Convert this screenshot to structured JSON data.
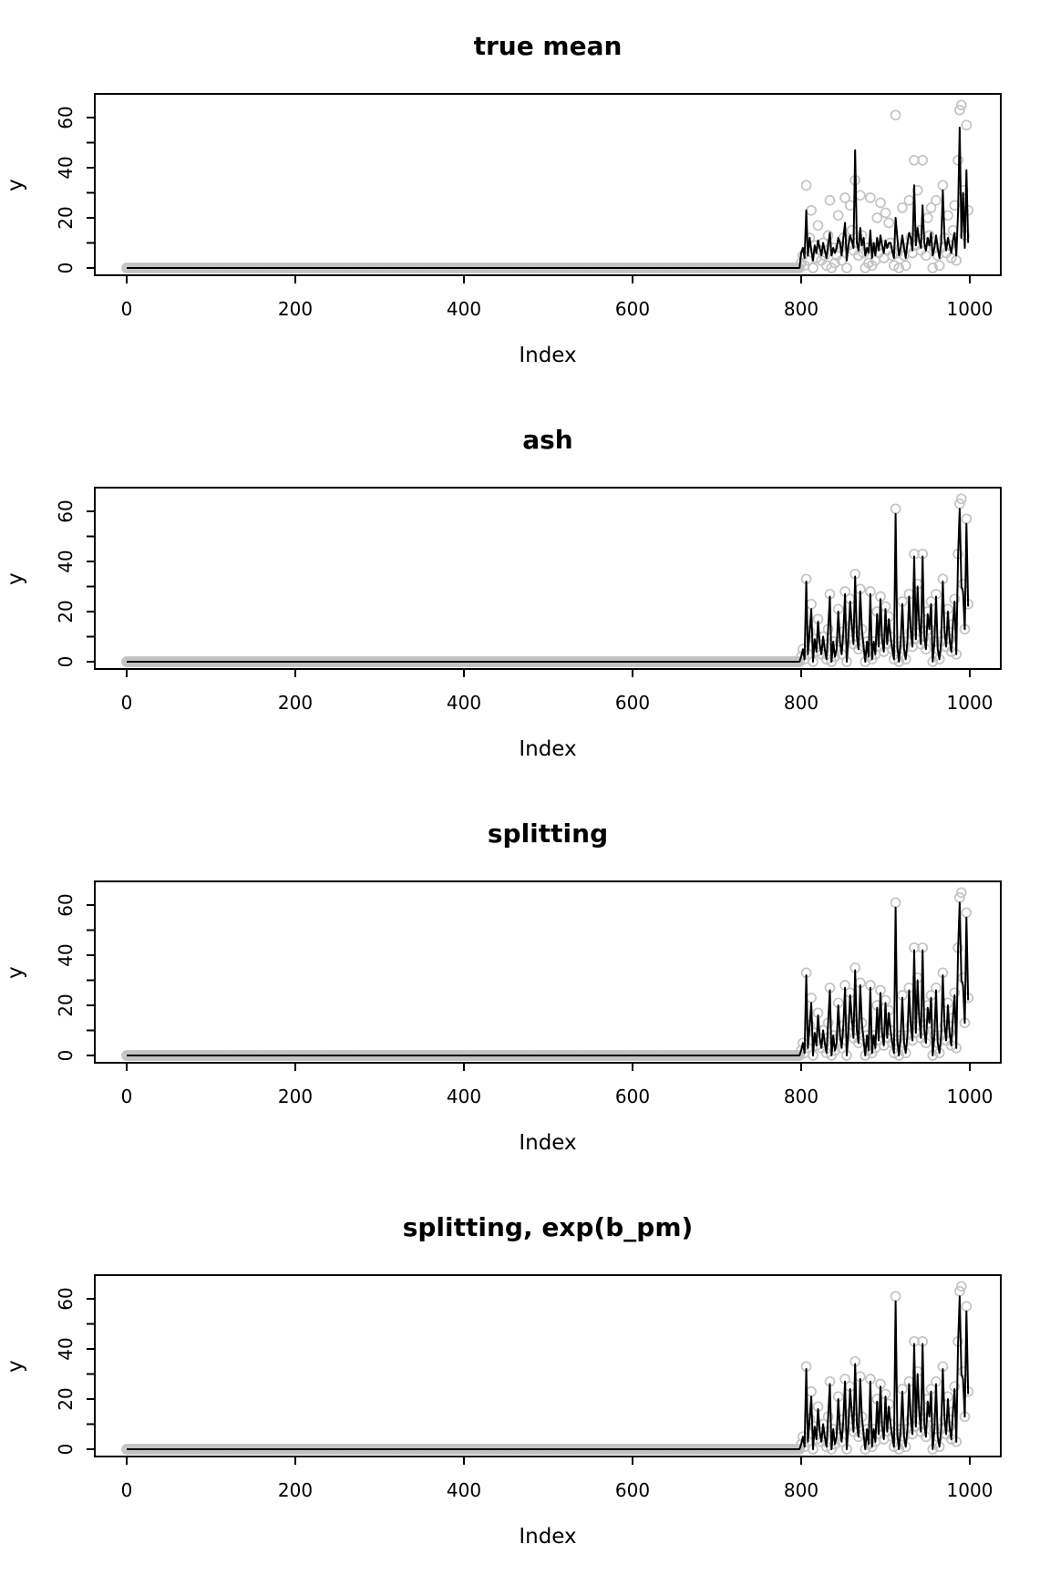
{
  "figure": {
    "background": "#ffffff",
    "panel_count": 4
  },
  "style": {
    "point_color": "#c3c3c3",
    "line_color": "#000000",
    "axis_color": "#000000",
    "box_stroke_width": 2,
    "line_stroke_width": 2,
    "point_radius": 5,
    "point_stroke_width": 1.7
  },
  "chart_data": [
    {
      "type": "line",
      "title": "true mean",
      "xlabel": "Index",
      "ylabel": "y",
      "x_ticks": [
        0,
        200,
        400,
        600,
        800,
        1000
      ],
      "y_ticks_all": [
        0,
        10,
        20,
        30,
        40,
        50,
        60
      ],
      "y_tick_labels": [
        0,
        20,
        40,
        60
      ],
      "xlim": [
        -40,
        1040
      ],
      "ylim": [
        -3,
        69
      ],
      "grid": false,
      "legend": "none",
      "flat_region": {
        "x_from": 0,
        "x_to": 798,
        "step": 2,
        "value": 0
      },
      "spike_region": {
        "x_start": 800,
        "x_step": 2
      },
      "points_series": "observations",
      "line_series": "true_mean"
    },
    {
      "type": "line",
      "title": "ash",
      "xlabel": "Index",
      "ylabel": "y",
      "x_ticks": [
        0,
        200,
        400,
        600,
        800,
        1000
      ],
      "y_ticks_all": [
        0,
        10,
        20,
        30,
        40,
        50,
        60
      ],
      "y_tick_labels": [
        0,
        20,
        40,
        60
      ],
      "xlim": [
        -40,
        1040
      ],
      "ylim": [
        -3,
        69
      ],
      "grid": false,
      "legend": "none",
      "flat_region": {
        "x_from": 0,
        "x_to": 798,
        "step": 2,
        "value": 0
      },
      "spike_region": {
        "x_start": 800,
        "x_step": 2
      },
      "points_series": "observations",
      "line_series": "estimate"
    },
    {
      "type": "line",
      "title": "splitting",
      "xlabel": "Index",
      "ylabel": "y",
      "x_ticks": [
        0,
        200,
        400,
        600,
        800,
        1000
      ],
      "y_ticks_all": [
        0,
        10,
        20,
        30,
        40,
        50,
        60
      ],
      "y_tick_labels": [
        0,
        20,
        40,
        60
      ],
      "xlim": [
        -40,
        1040
      ],
      "ylim": [
        -3,
        69
      ],
      "grid": false,
      "legend": "none",
      "flat_region": {
        "x_from": 0,
        "x_to": 798,
        "step": 2,
        "value": 0
      },
      "spike_region": {
        "x_start": 800,
        "x_step": 2
      },
      "points_series": "observations",
      "line_series": "estimate"
    },
    {
      "type": "line",
      "title": "splitting, exp(b_pm)",
      "xlabel": "Index",
      "ylabel": "y",
      "x_ticks": [
        0,
        200,
        400,
        600,
        800,
        1000
      ],
      "y_ticks_all": [
        0,
        10,
        20,
        30,
        40,
        50,
        60
      ],
      "y_tick_labels": [
        0,
        20,
        40,
        60
      ],
      "xlim": [
        -40,
        1040
      ],
      "ylim": [
        -3,
        69
      ],
      "grid": false,
      "legend": "none",
      "flat_region": {
        "x_from": 0,
        "x_to": 798,
        "step": 2,
        "value": 0
      },
      "spike_region": {
        "x_start": 800,
        "x_step": 2
      },
      "points_series": "observations",
      "line_series": "estimate"
    }
  ],
  "series": {
    "observations": [
      2,
      5,
      1,
      33,
      3,
      12,
      23,
      0,
      9,
      4,
      17,
      7,
      3,
      10,
      5,
      1,
      13,
      27,
      0,
      8,
      2,
      5,
      21,
      8,
      3,
      12,
      28,
      0,
      9,
      25,
      15,
      7,
      35,
      10,
      5,
      29,
      13,
      6,
      0,
      8,
      2,
      28,
      1,
      8,
      3,
      20,
      6,
      26,
      9,
      4,
      22,
      7,
      18,
      10,
      5,
      1,
      61,
      6,
      0,
      8,
      24,
      5,
      1,
      8,
      27,
      12,
      6,
      43,
      9,
      31,
      15,
      7,
      43,
      10,
      5,
      20,
      13,
      24,
      0,
      8,
      27,
      5,
      1,
      8,
      33,
      12,
      6,
      21,
      9,
      4,
      15,
      25,
      3,
      43,
      63,
      65,
      31,
      13,
      57,
      23
    ],
    "true_mean": [
      6,
      8,
      4,
      23,
      5,
      12,
      7,
      3,
      9,
      6,
      11,
      8,
      5,
      10,
      7,
      4,
      9,
      14,
      5,
      8,
      6,
      8,
      12,
      10,
      5,
      12,
      18,
      3,
      9,
      13,
      11,
      8,
      47,
      10,
      7,
      16,
      9,
      12,
      5,
      8,
      6,
      15,
      4,
      10,
      5,
      12,
      7,
      13,
      9,
      6,
      11,
      8,
      10,
      10,
      7,
      4,
      20,
      12,
      5,
      8,
      13,
      8,
      4,
      10,
      14,
      12,
      7,
      33,
      9,
      16,
      11,
      8,
      25,
      10,
      7,
      12,
      9,
      14,
      5,
      8,
      13,
      8,
      4,
      10,
      31,
      12,
      7,
      12,
      9,
      6,
      11,
      14,
      5,
      22,
      56,
      12,
      30,
      8,
      39,
      10
    ],
    "estimate": [
      2,
      5,
      1,
      32,
      3,
      12,
      21,
      0,
      9,
      4,
      16,
      7,
      3,
      10,
      5,
      1,
      13,
      26,
      0,
      8,
      2,
      5,
      20,
      8,
      3,
      12,
      27,
      0,
      9,
      24,
      15,
      7,
      34,
      10,
      5,
      28,
      13,
      6,
      0,
      8,
      2,
      27,
      1,
      8,
      3,
      19,
      6,
      25,
      9,
      4,
      21,
      7,
      17,
      10,
      5,
      1,
      59,
      6,
      0,
      8,
      23,
      5,
      1,
      8,
      26,
      12,
      6,
      42,
      9,
      30,
      15,
      7,
      42,
      10,
      5,
      19,
      13,
      23,
      0,
      8,
      26,
      5,
      1,
      8,
      32,
      12,
      6,
      20,
      9,
      4,
      15,
      24,
      3,
      42,
      61,
      30,
      28,
      13,
      55,
      22
    ]
  }
}
